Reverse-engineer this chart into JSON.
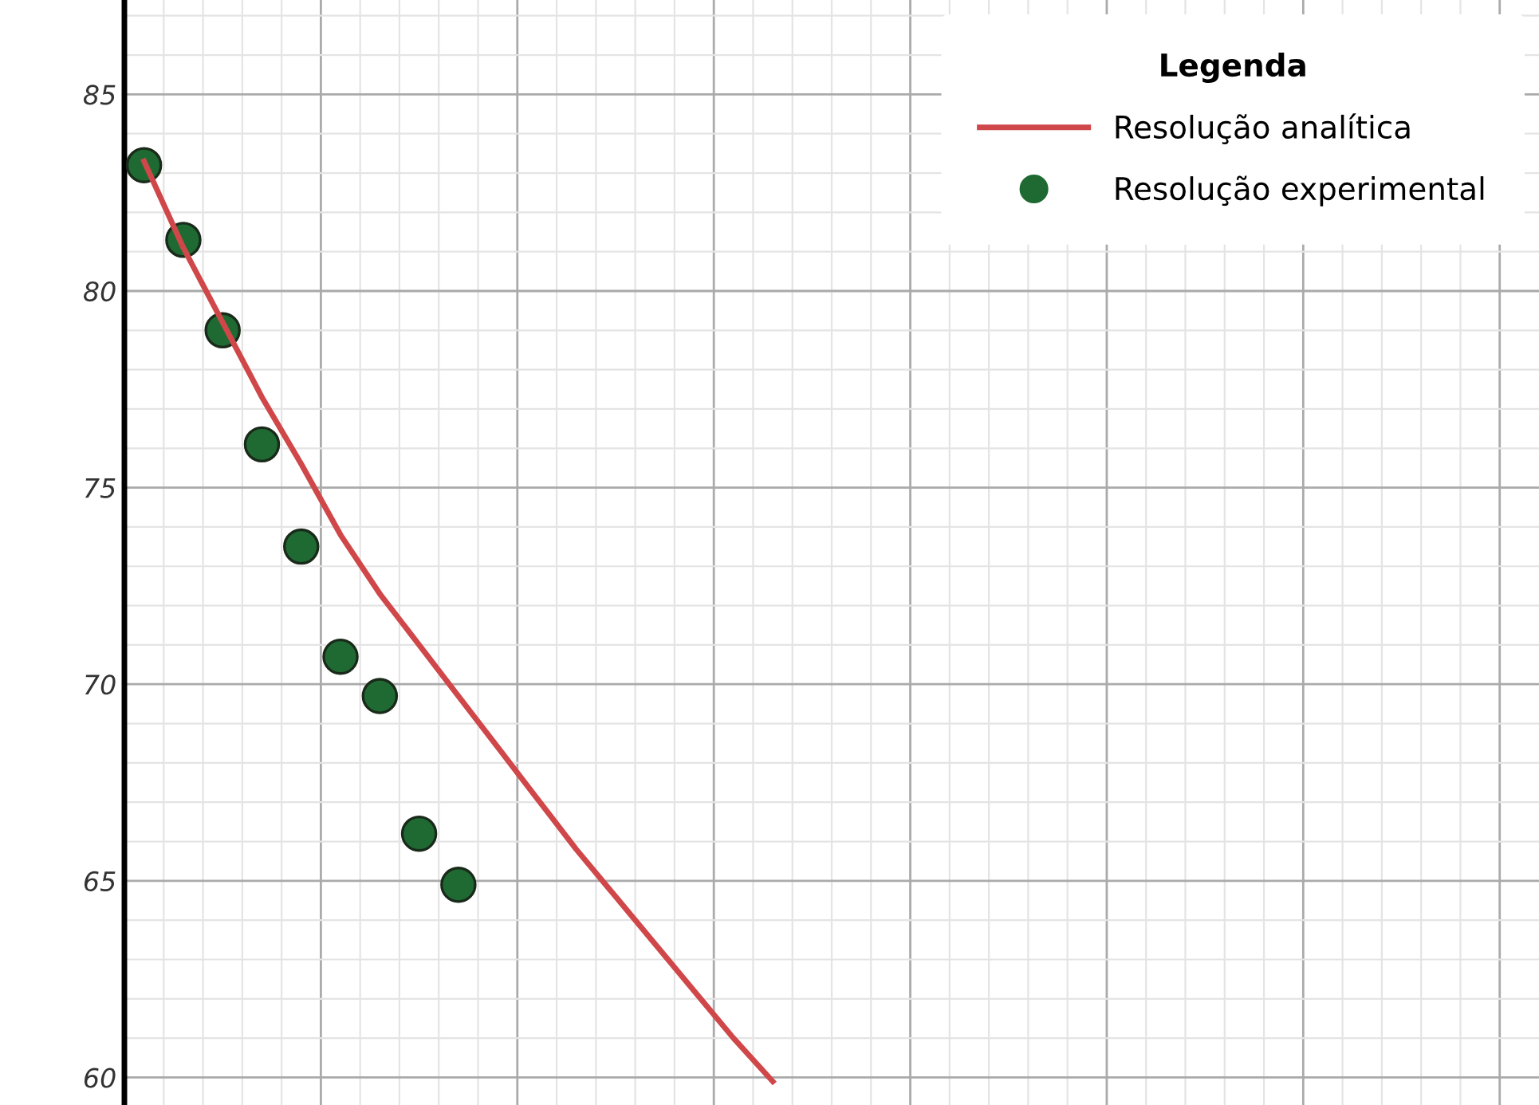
{
  "chart_data": {
    "type": "scatter",
    "legend_title": "Legenda",
    "categories": [
      null,
      null,
      null,
      null,
      null,
      null,
      null,
      null,
      null,
      null,
      null,
      null,
      null,
      null,
      null,
      null,
      null,
      null,
      null,
      null,
      null,
      null,
      null,
      null,
      null,
      null,
      null,
      null,
      null,
      null,
      null,
      null,
      null,
      null,
      null,
      null
    ],
    "series": [
      {
        "name": "Resolução analítica",
        "type": "line",
        "color": "#d0474a",
        "values": [
          83.3,
          81.1,
          79.2,
          77.3,
          75.6,
          73.8,
          72.3,
          71.0,
          69.7,
          68.4,
          67.1,
          65.8,
          64.6,
          63.4,
          62.2,
          61.0,
          59.9,
          null,
          null,
          null,
          null,
          null,
          null,
          null,
          null,
          null,
          null,
          null,
          null,
          null,
          null,
          null,
          null,
          null,
          null,
          null
        ]
      },
      {
        "name": "Resolução experimental",
        "marker": "circle",
        "color": "#1e6a32",
        "values": [
          83.2,
          81.3,
          79.0,
          76.1,
          73.5,
          70.7,
          69.7,
          66.2,
          64.9,
          null,
          null,
          null,
          null,
          null,
          null,
          null,
          null,
          null,
          null,
          null,
          null,
          null,
          null,
          null,
          null,
          null,
          null,
          null,
          null,
          null,
          null,
          null,
          null,
          null,
          null,
          null
        ]
      }
    ],
    "ylim": [
      59.3,
      87.4
    ],
    "yticks": [
      60,
      65,
      70,
      75,
      80,
      85
    ],
    "grid": true,
    "legend": "top right",
    "tick_labels": "y"
  }
}
